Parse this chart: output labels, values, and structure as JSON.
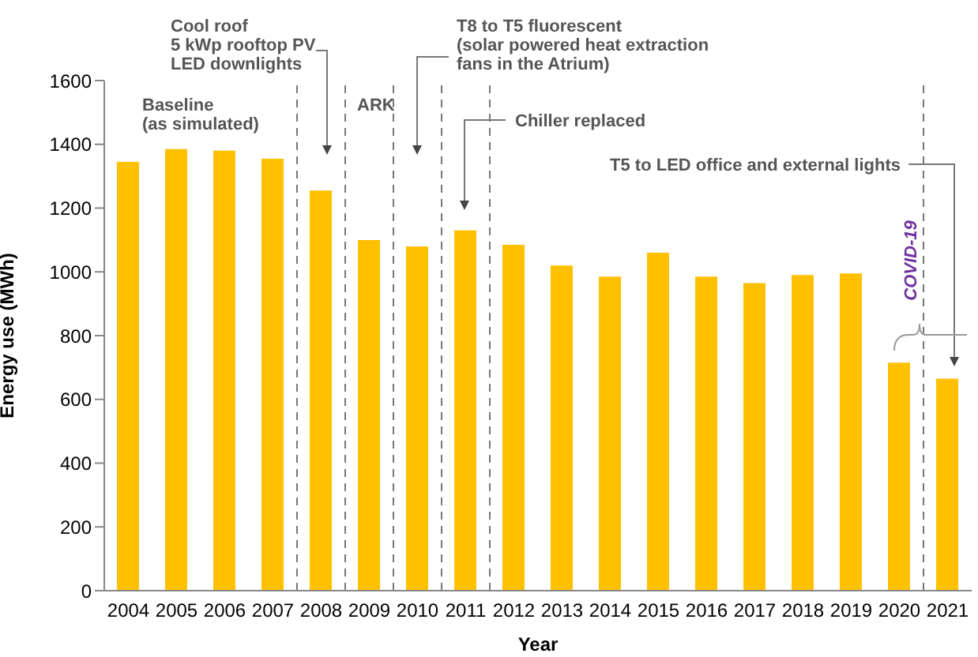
{
  "chart_data": {
    "type": "bar",
    "xlabel": "Year",
    "ylabel": "Energy use (MWh)",
    "x": [
      2004,
      2005,
      2006,
      2007,
      2008,
      2009,
      2010,
      2011,
      2012,
      2013,
      2014,
      2015,
      2016,
      2017,
      2018,
      2019,
      2020,
      2021
    ],
    "values": [
      1345,
      1385,
      1380,
      1355,
      1255,
      1100,
      1080,
      1130,
      1085,
      1020,
      985,
      1060,
      985,
      965,
      990,
      995,
      715,
      665
    ],
    "color": "#ffc000",
    "xlim": [
      2003.5,
      2021.5
    ],
    "xticks": [
      2004,
      2005,
      2006,
      2007,
      2008,
      2009,
      2010,
      2011,
      2012,
      2013,
      2014,
      2015,
      2016,
      2017,
      2018,
      2019,
      2020,
      2021
    ],
    "ylim": [
      0,
      1600
    ],
    "yticks": [
      0,
      200,
      400,
      600,
      800,
      1000,
      1200,
      1400,
      1600
    ],
    "ref_lines": [
      {
        "axis": "x",
        "value": 2007.5,
        "label": null,
        "color": "#777777",
        "line_style": "dashed"
      },
      {
        "axis": "x",
        "value": 2008.5,
        "label": null,
        "color": "#777777",
        "line_style": "dashed"
      },
      {
        "axis": "x",
        "value": 2009.5,
        "label": null,
        "color": "#777777",
        "line_style": "dashed"
      },
      {
        "axis": "x",
        "value": 2010.5,
        "label": null,
        "color": "#777777",
        "line_style": "dashed"
      },
      {
        "axis": "x",
        "value": 2011.5,
        "label": null,
        "color": "#777777",
        "line_style": "dashed"
      },
      {
        "axis": "x",
        "value": 2020.5,
        "label": null,
        "color": "#777777",
        "line_style": "dashed"
      }
    ],
    "annotations": [
      "Baseline\n(as simulated)",
      "Cool roof\n5 kWp rooftop PV\nLED downlights",
      "ARK",
      "T8 to T5 fluorescent\n(solar powered heat extraction\nfans in the Atrium)",
      "Chiller replaced",
      "T5 to LED office and external lights",
      "COVID-19"
    ]
  }
}
